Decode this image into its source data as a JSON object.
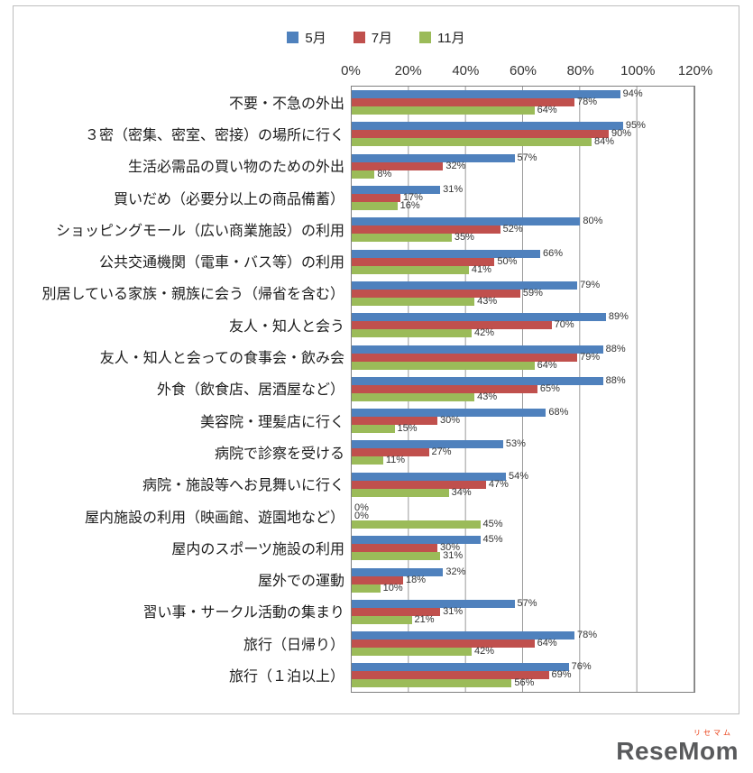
{
  "chart_data": {
    "type": "bar",
    "orientation": "horizontal",
    "title": "",
    "xlabel": "",
    "ylabel": "",
    "xlim": [
      0,
      120
    ],
    "x_ticks": [
      "0%",
      "20%",
      "40%",
      "60%",
      "80%",
      "100%",
      "120%"
    ],
    "value_suffix": "%",
    "grid": true,
    "legend_position": "top",
    "categories": [
      "不要・不急の外出",
      "３密（密集、密室、密接）の場所に行く",
      "生活必需品の買い物のための外出",
      "買いだめ（必要分以上の商品備蓄）",
      "ショッピングモール（広い商業施設）の利用",
      "公共交通機関（電車・バス等）の利用",
      "別居している家族・親族に会う（帰省を含む）",
      "友人・知人と会う",
      "友人・知人と会っての食事会・飲み会",
      "外食（飲食店、居酒屋など）",
      "美容院・理髪店に行く",
      "病院で診察を受ける",
      "病院・施設等へお見舞いに行く",
      "屋内施設の利用（映画館、遊園地など）",
      "屋内のスポーツ施設の利用",
      "屋外での運動",
      "習い事・サークル活動の集まり",
      "旅行（日帰り）",
      "旅行（１泊以上）"
    ],
    "series": [
      {
        "name": "5月",
        "color": "#4f81bd",
        "values": [
          94,
          95,
          57,
          31,
          80,
          66,
          79,
          89,
          88,
          88,
          68,
          53,
          54,
          0,
          45,
          32,
          57,
          78,
          76
        ]
      },
      {
        "name": "7月",
        "color": "#c0504d",
        "values": [
          78,
          90,
          32,
          17,
          52,
          50,
          59,
          70,
          79,
          65,
          30,
          27,
          47,
          0,
          30,
          18,
          31,
          64,
          69
        ]
      },
      {
        "name": "11月",
        "color": "#9bbb59",
        "values": [
          64,
          84,
          8,
          16,
          35,
          41,
          43,
          42,
          64,
          43,
          15,
          11,
          34,
          45,
          31,
          10,
          21,
          42,
          56
        ]
      }
    ]
  },
  "logo": {
    "katakana": "リセマム",
    "name": "ReseMom"
  }
}
